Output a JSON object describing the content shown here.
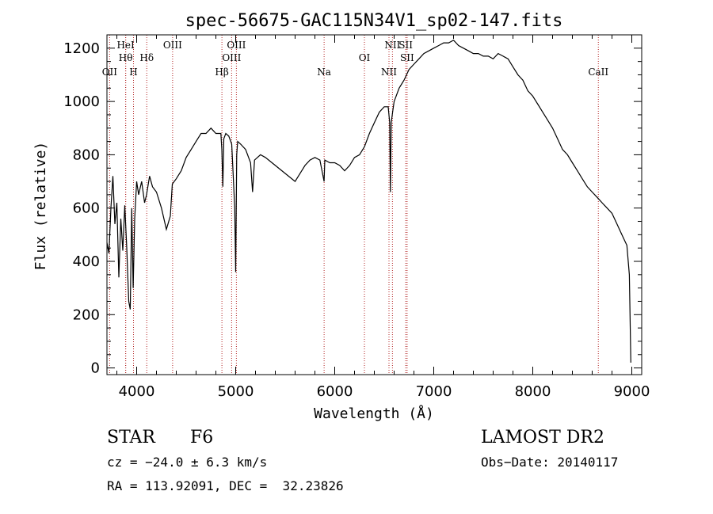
{
  "chart_data": {
    "type": "line",
    "title": "spec-56675-GAC115N34V1_sp02-147.fits",
    "xlabel": "Wavelength (Å)",
    "ylabel": "Flux (relative)",
    "xlim": [
      3700,
      9100
    ],
    "ylim": [
      -25,
      1250
    ],
    "xticks": [
      4000,
      5000,
      6000,
      7000,
      8000,
      9000
    ],
    "xtick_labels": [
      "4000",
      "5000",
      "6000",
      "7000",
      "8000",
      "9000"
    ],
    "yticks": [
      0,
      200,
      400,
      600,
      800,
      1000,
      1200
    ],
    "ytick_labels": [
      "0",
      "200",
      "400",
      "600",
      "800",
      "1000",
      "1200"
    ],
    "grid": false,
    "line_color": "#000000",
    "marker_color": "#b22222",
    "series": [
      {
        "x": [
          3700,
          3720,
          3740,
          3760,
          3780,
          3800,
          3820,
          3840,
          3860,
          3880,
          3900,
          3920,
          3935,
          3950,
          3965,
          3980,
          4000,
          4020,
          4050,
          4080,
          4100,
          4130,
          4160,
          4200,
          4250,
          4300,
          4340,
          4360,
          4400,
          4450,
          4500,
          4550,
          4600,
          4650,
          4700,
          4750,
          4800,
          4850,
          4860,
          4870,
          4880,
          4900,
          4930,
          4960,
          4990,
          5000,
          5010,
          5020,
          5050,
          5100,
          5150,
          5170,
          5190,
          5250,
          5300,
          5400,
          5500,
          5600,
          5700,
          5750,
          5800,
          5850,
          5893,
          5900,
          5950,
          6000,
          6050,
          6100,
          6150,
          6200,
          6250,
          6300,
          6350,
          6400,
          6450,
          6500,
          6540,
          6555,
          6562,
          6570,
          6585,
          6600,
          6650,
          6700,
          6750,
          6800,
          6850,
          6900,
          6950,
          7000,
          7050,
          7100,
          7150,
          7200,
          7250,
          7300,
          7350,
          7400,
          7450,
          7500,
          7550,
          7600,
          7650,
          7700,
          7750,
          7800,
          7850,
          7900,
          7950,
          8000,
          8050,
          8100,
          8150,
          8200,
          8250,
          8300,
          8350,
          8400,
          8450,
          8500,
          8550,
          8600,
          8650,
          8700,
          8750,
          8800,
          8850,
          8900,
          8950,
          8975,
          8990
        ],
        "y": [
          470,
          430,
          600,
          720,
          540,
          620,
          340,
          560,
          440,
          610,
          450,
          250,
          220,
          600,
          300,
          560,
          700,
          650,
          700,
          620,
          650,
          720,
          680,
          660,
          600,
          520,
          570,
          690,
          710,
          740,
          790,
          820,
          850,
          880,
          880,
          900,
          880,
          880,
          820,
          680,
          860,
          880,
          870,
          840,
          600,
          360,
          800,
          850,
          840,
          820,
          770,
          660,
          780,
          800,
          790,
          760,
          730,
          700,
          760,
          780,
          790,
          780,
          700,
          780,
          770,
          770,
          760,
          740,
          760,
          790,
          800,
          830,
          880,
          920,
          960,
          980,
          980,
          920,
          660,
          920,
          960,
          1000,
          1050,
          1080,
          1120,
          1140,
          1160,
          1180,
          1190,
          1200,
          1210,
          1220,
          1220,
          1230,
          1210,
          1200,
          1190,
          1180,
          1180,
          1170,
          1170,
          1160,
          1180,
          1170,
          1160,
          1130,
          1100,
          1080,
          1040,
          1020,
          990,
          960,
          930,
          900,
          860,
          820,
          800,
          770,
          740,
          710,
          680,
          660,
          640,
          620,
          600,
          580,
          540,
          500,
          460,
          350,
          20
        ]
      }
    ],
    "lines": [
      {
        "x": 3727,
        "label": "OII",
        "row": 3
      },
      {
        "x": 3889,
        "label": "Hθ",
        "row": 2
      },
      {
        "x": 3889,
        "label": "HeI",
        "row": 1
      },
      {
        "x": 3968,
        "label": "H",
        "row": 3
      },
      {
        "x": 4102,
        "label": "Hδ",
        "row": 2
      },
      {
        "x": 4363,
        "label": "OIII",
        "row": 1
      },
      {
        "x": 4861,
        "label": "Hβ",
        "row": 3
      },
      {
        "x": 4959,
        "label": "OIII",
        "row": 2
      },
      {
        "x": 5007,
        "label": "OIII",
        "row": 1
      },
      {
        "x": 5893,
        "label": "Na",
        "row": 3
      },
      {
        "x": 6300,
        "label": "OI",
        "row": 2
      },
      {
        "x": 6548,
        "label": "NII",
        "row": 3
      },
      {
        "x": 6583,
        "label": "NII",
        "row": 1
      },
      {
        "x": 6717,
        "label": "SII",
        "row": 1
      },
      {
        "x": 6731,
        "label": "SII",
        "row": 2
      },
      {
        "x": 8662,
        "label": "CaII",
        "row": 3
      }
    ]
  },
  "info": {
    "class": "STAR",
    "subclass": "F6",
    "survey": "LAMOST DR2",
    "redshift": "cz = −24.0 ± 6.3 km/s",
    "obs_date": "Obs−Date: 20140117",
    "coords": "RA = 113.92091, DEC =  32.23826"
  }
}
